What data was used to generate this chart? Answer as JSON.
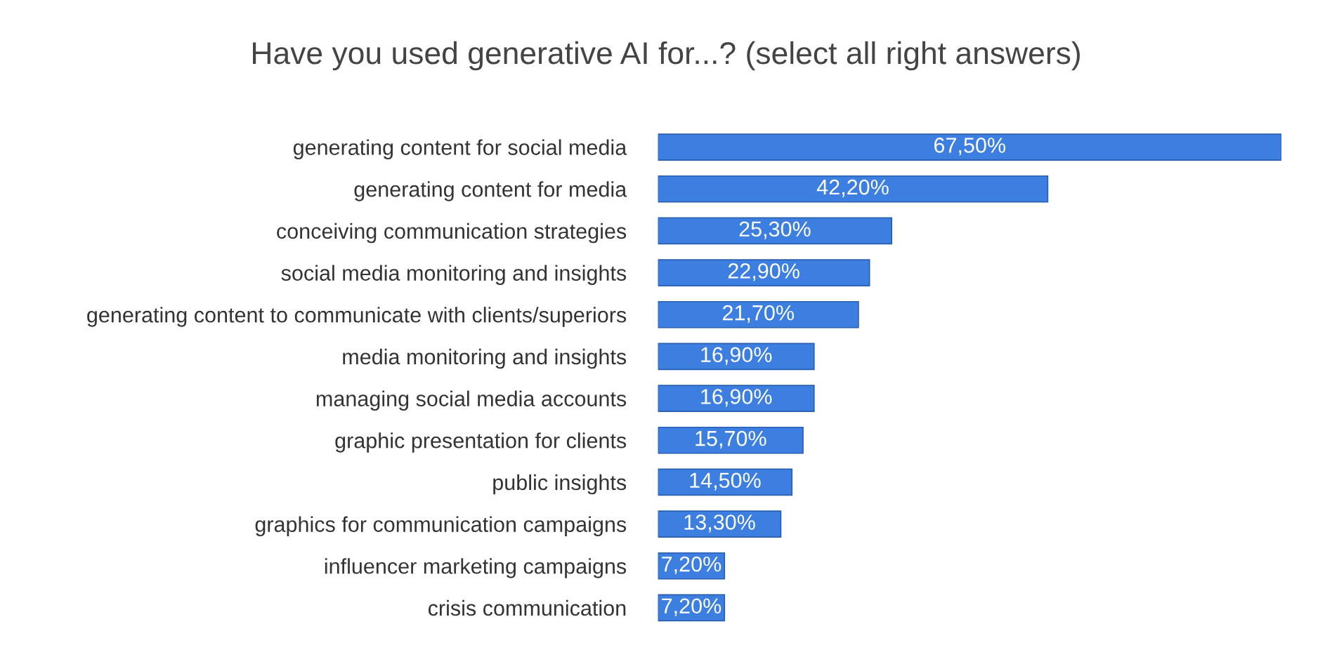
{
  "chart_data": {
    "type": "bar",
    "orientation": "horizontal",
    "title": "Have you used generative AI for...? (select all right answers)",
    "categories": [
      "generating content for social media",
      "generating content for media",
      "conceiving communication strategies",
      "social media monitoring and insights",
      "generating content to communicate with clients/superiors",
      "media monitoring and insights",
      "managing social media accounts",
      "graphic presentation for clients",
      "public insights",
      "graphics for communication campaigns",
      "influencer marketing campaigns",
      "crisis communication"
    ],
    "values": [
      67.5,
      42.2,
      25.3,
      22.9,
      21.7,
      16.9,
      16.9,
      15.7,
      14.5,
      13.3,
      7.2,
      7.2
    ],
    "value_labels": [
      "67,50%",
      "42,20%",
      "25,30%",
      "22,90%",
      "21,70%",
      "16,90%",
      "16,90%",
      "15,70%",
      "14,50%",
      "13,30%",
      "7,20%",
      "7,20%"
    ],
    "color": "#3d7fe0",
    "grid": false,
    "legend": false
  }
}
